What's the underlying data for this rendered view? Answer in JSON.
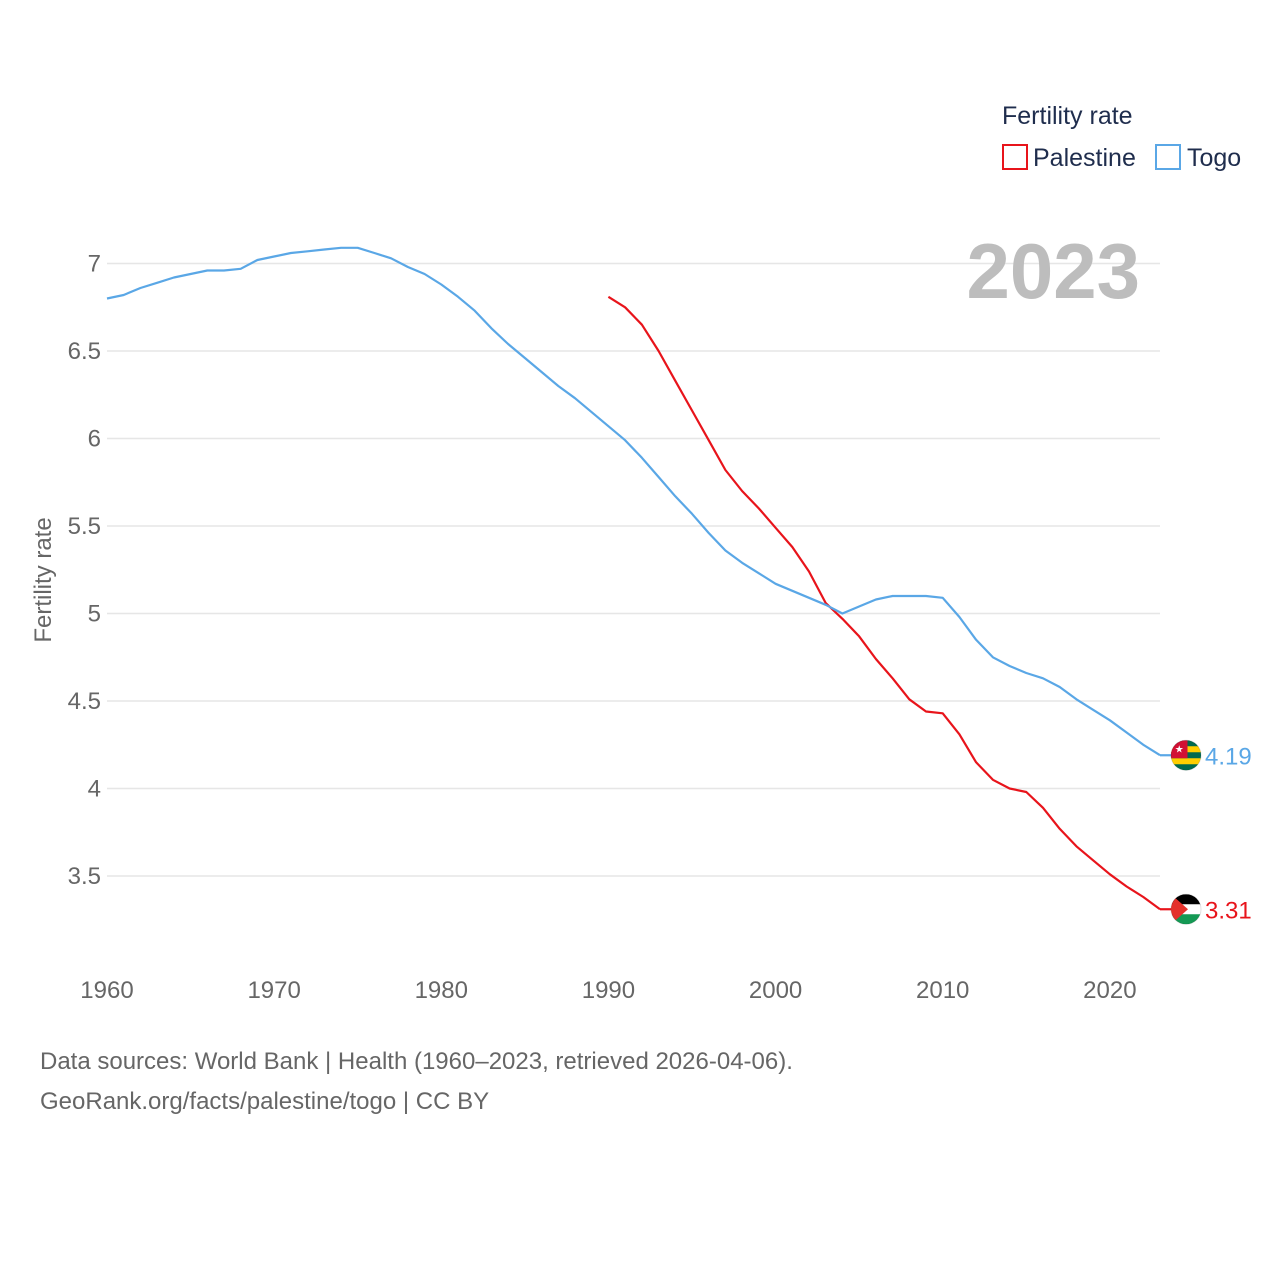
{
  "chart_data": {
    "type": "line",
    "title": "",
    "year_label": "2023",
    "xlabel": "",
    "ylabel": "Fertility rate",
    "xlim": [
      1960,
      2023
    ],
    "ylim": [
      3.0,
      7.4
    ],
    "x_ticks": [
      1960,
      1970,
      1980,
      1990,
      2000,
      2010,
      2020
    ],
    "y_ticks": [
      3.5,
      4,
      4.5,
      5,
      5.5,
      6,
      6.5,
      7
    ],
    "grid": "horizontal",
    "legend": {
      "title": "Fertility rate",
      "position": "top-right",
      "entries": [
        "Palestine",
        "Togo"
      ]
    },
    "series": [
      {
        "name": "Palestine",
        "color": "#e8141b",
        "end_label": "3.31",
        "flag": "palestine-flag",
        "x": [
          1990,
          1991,
          1992,
          1993,
          1994,
          1995,
          1996,
          1997,
          1998,
          1999,
          2000,
          2001,
          2002,
          2003,
          2004,
          2005,
          2006,
          2007,
          2008,
          2009,
          2010,
          2011,
          2012,
          2013,
          2014,
          2015,
          2016,
          2017,
          2018,
          2019,
          2020,
          2021,
          2022,
          2023
        ],
        "y": [
          6.81,
          6.75,
          6.65,
          6.5,
          6.33,
          6.16,
          5.99,
          5.82,
          5.7,
          5.6,
          5.49,
          5.38,
          5.24,
          5.06,
          4.97,
          4.87,
          4.74,
          4.63,
          4.51,
          4.44,
          4.43,
          4.31,
          4.15,
          4.05,
          4.0,
          3.98,
          3.89,
          3.77,
          3.67,
          3.59,
          3.51,
          3.44,
          3.38,
          3.31
        ]
      },
      {
        "name": "Togo",
        "color": "#5aa7e6",
        "end_label": "4.19",
        "flag": "togo-flag",
        "x": [
          1960,
          1961,
          1962,
          1963,
          1964,
          1965,
          1966,
          1967,
          1968,
          1969,
          1970,
          1971,
          1972,
          1973,
          1974,
          1975,
          1976,
          1977,
          1978,
          1979,
          1980,
          1981,
          1982,
          1983,
          1984,
          1985,
          1986,
          1987,
          1988,
          1989,
          1990,
          1991,
          1992,
          1993,
          1994,
          1995,
          1996,
          1997,
          1998,
          1999,
          2000,
          2001,
          2002,
          2003,
          2004,
          2005,
          2006,
          2007,
          2008,
          2009,
          2010,
          2011,
          2012,
          2013,
          2014,
          2015,
          2016,
          2017,
          2018,
          2019,
          2020,
          2021,
          2022,
          2023
        ],
        "y": [
          6.8,
          6.82,
          6.86,
          6.89,
          6.92,
          6.94,
          6.96,
          6.96,
          6.97,
          7.02,
          7.04,
          7.06,
          7.07,
          7.08,
          7.09,
          7.09,
          7.06,
          7.03,
          6.98,
          6.94,
          6.88,
          6.81,
          6.73,
          6.63,
          6.54,
          6.46,
          6.38,
          6.3,
          6.23,
          6.15,
          6.07,
          5.99,
          5.89,
          5.78,
          5.67,
          5.57,
          5.46,
          5.36,
          5.29,
          5.23,
          5.17,
          5.13,
          5.09,
          5.05,
          5.0,
          5.04,
          5.08,
          5.1,
          5.1,
          5.1,
          5.09,
          4.98,
          4.85,
          4.75,
          4.7,
          4.66,
          4.63,
          4.58,
          4.51,
          4.45,
          4.39,
          4.32,
          4.25,
          4.19
        ]
      }
    ]
  },
  "footer": {
    "source_line": "Data sources: World Bank | Health (1960–2023, retrieved 2026-04-06).",
    "credit_line": "GeoRank.org/facts/palestine/togo | CC BY"
  }
}
